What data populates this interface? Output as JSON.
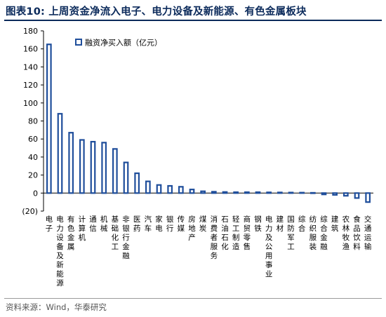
{
  "header": {
    "title": "图表10:  上周资金净流入电子、电力设备及新能源、有色金属板块"
  },
  "footer": {
    "source": "资料来源：Wind，华泰研究"
  },
  "colors": {
    "bar_fill": "#ffffff",
    "bar_stroke": "#1f4e9b",
    "title": "#0b2a5b"
  },
  "chart_data": {
    "type": "bar",
    "legend": "融资净买入额（亿元）",
    "legend_position": "top-left",
    "grid": false,
    "ylim": [
      -20,
      180
    ],
    "yticks": [
      "(20)",
      "0",
      "20",
      "40",
      "60",
      "80",
      "100",
      "120",
      "140",
      "160",
      "180"
    ],
    "categories": [
      "电子",
      "电力设备及新能源",
      "有色金属",
      "计算机",
      "通信",
      "机械",
      "基础化工",
      "非银行金融",
      "医药",
      "汽车",
      "家电",
      "银行",
      "传媒",
      "房地产",
      "煤炭",
      "消费者服务",
      "石油石化",
      "轻工制造",
      "商贸零售",
      "钢铁",
      "电力及公用事业",
      "建材",
      "国防军工",
      "综合",
      "纺织服装",
      "综合金融",
      "建筑",
      "农林牧渔",
      "食品饮料",
      "交通运输"
    ],
    "values": [
      165,
      88,
      67,
      59,
      57,
      56,
      49,
      34,
      22,
      13,
      9,
      8,
      7,
      4,
      2,
      1.5,
      1.2,
      1,
      1,
      1,
      0.8,
      0.7,
      0.6,
      0.5,
      0.3,
      -1.5,
      -2,
      -3,
      -5.5,
      -10
    ]
  }
}
